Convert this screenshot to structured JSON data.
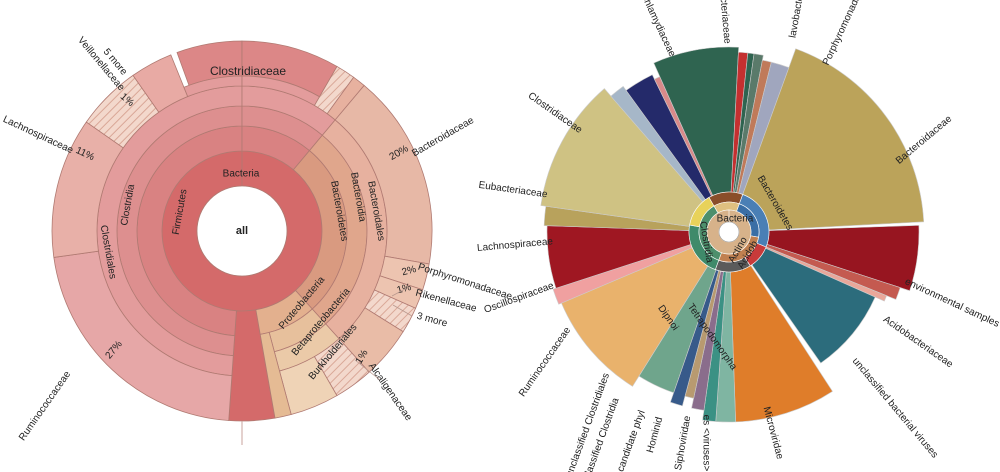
{
  "chart_data": [
    {
      "type": "sunburst",
      "center_label": "all",
      "sector_labels": {
        "bacteria": "Bacteria",
        "firmicutes": "Firmicutes",
        "clostridia": "Clostridia",
        "clostridiales": "Clostridiales",
        "bacteroidetes": "Bacteroidetes",
        "bacteroidia": "Bacteroidia",
        "bacteroidales": "Bacteroidales",
        "proteobacteria": "Proteobacteria",
        "betaproteobacteria": "Betaproteobacteria",
        "burkholderiales": "Burkholderiales",
        "clostridiaceae": "Clostridiaceae"
      },
      "leaves": [
        {
          "name": "Ruminococcaceae",
          "percent_label": "27%",
          "value": 27
        },
        {
          "name": "Lachnospiraceae",
          "percent_label": "11%",
          "value": 11
        },
        {
          "name": "Veillonellaceae",
          "percent_label": "1%",
          "value": 1
        },
        {
          "name": "5 more",
          "percent_label": "",
          "value": 2
        },
        {
          "name": "Clostridiaceae",
          "percent_label": "",
          "value": 12
        },
        {
          "name": "Bacteroidaceae",
          "percent_label": "20%",
          "value": 20
        },
        {
          "name": "Porphyromonadaceae",
          "percent_label": "2%",
          "value": 2
        },
        {
          "name": "Rikenellaceae",
          "percent_label": "1%",
          "value": 1
        },
        {
          "name": "3 more",
          "percent_label": "",
          "value": 2
        },
        {
          "name": "Alcaligenaceae",
          "percent_label": "1%",
          "value": 1
        }
      ],
      "colors": {
        "firmicutes": "#e8a9a9",
        "firmicutes_dark": "#d98282",
        "bacteroidetes": "#e9b9a2",
        "bacteroidetes_dark": "#d99a80",
        "proteobacteria": "#e2c7a6",
        "hatch": "#f1d3c3",
        "stroke": "#b07a72",
        "bacteria": "#d46a6a"
      }
    },
    {
      "type": "sunburst",
      "center_labels": [
        "Bacteria",
        "Bacteroidetes",
        "Clostridia",
        "Actino",
        "Acidob"
      ],
      "leaves": [
        {
          "name": "Bacteroidaceae",
          "color": "#b9a45a"
        },
        {
          "name": "environmental samples",
          "color": "#971520"
        },
        {
          "name": "Acidobacteriaceae",
          "color": "#c45a50"
        },
        {
          "name": "unclassified bacterial viruses",
          "color": "#2c6c7c"
        },
        {
          "name": "Microviridae",
          "color": "#df7d2a"
        },
        {
          "name": "Siphoviridae",
          "color": "#7fb5a2"
        },
        {
          "name": "<viruses>",
          "color": "#3b9184"
        },
        {
          "name": "Hominidae",
          "color": "#8a6d8c"
        },
        {
          "name": "Dipnoi",
          "color": "#5a8a6c"
        },
        {
          "name": "Tetrapodomorpha",
          "color": "#b89a70"
        },
        {
          "name": "candidate phyla",
          "color": "#375a8a"
        },
        {
          "name": "unclassified Clostridiales",
          "color": "#6fa58c"
        },
        {
          "name": "Ruminococcaceae",
          "color": "#e9b26c"
        },
        {
          "name": "Oscillospiraceae",
          "color": "#f0a0a0"
        },
        {
          "name": "Lachnospiraceae",
          "color": "#9f1722"
        },
        {
          "name": "Eubacteriaceae",
          "color": "#b8a25c"
        },
        {
          "name": "Clostridiaceae",
          "color": "#cfc283"
        },
        {
          "name": "Chlamydiaceae",
          "color": "#242a6a"
        },
        {
          "name": "Pasteurellaceae",
          "color": "#2f6450"
        },
        {
          "name": "Flavobacteriaceae",
          "color": "#9a9db5"
        },
        {
          "name": "Porphyromonadaceae",
          "color": "#a0a6be"
        }
      ],
      "visible_text": {
        "clostridiaceae": "Clostridiaceae",
        "eubacteriaceae": "Eubacteriaceae",
        "lachnospiraceae": "Lachnospiraceae",
        "oscillospiraceae": "Oscillospiraceae",
        "ruminococcaceae": "Ruminococcaceae",
        "unclassified_clostridiales": "unclassified Clostridiales",
        "undassified_clostridia": "undassified Clostridia",
        "candidate_phyla": "a candidate phyl",
        "hominidae": "Hominid",
        "siphoviridae": "Siphoviridae",
        "viruses": "es <viruses>",
        "microviridae": "Microviridae",
        "unclassified_bacterial_viruses": "unclassified bacterial viruses",
        "acidobacteriaceae": "Acidobacteriaceae",
        "environmental_samples": "environmental samples",
        "bacteroidaceae": "Bacteroidaceae",
        "porphyromonadaceae": "Porphyromonada",
        "flavobacteriaceae": "lavobacteri",
        "pasteurellaceae": "acteriaceae",
        "chlamydiaceae": "Chlamydiaceae",
        "dipnoi": "Dipnoi",
        "tetrapodomorpha": "Tetrapodomorpha",
        "center_bacteria": "Bacteria",
        "center_bacteroidetes": "Bacteroidetes",
        "center_clostridia": "Clostridia",
        "center_actino": "Actino",
        "center_acidob": "Acidob"
      }
    }
  ]
}
